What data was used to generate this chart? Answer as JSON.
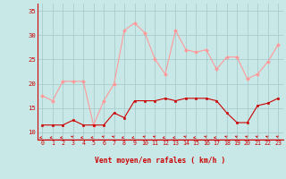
{
  "hours": [
    0,
    1,
    2,
    3,
    4,
    5,
    6,
    7,
    8,
    9,
    10,
    11,
    12,
    13,
    14,
    15,
    16,
    17,
    18,
    19,
    20,
    21,
    22,
    23
  ],
  "wind_avg": [
    11.5,
    11.5,
    11.5,
    12.5,
    11.5,
    11.5,
    11.5,
    14.0,
    13.0,
    16.5,
    16.5,
    16.5,
    17.0,
    16.5,
    17.0,
    17.0,
    17.0,
    16.5,
    14.0,
    12.0,
    12.0,
    15.5,
    16.0,
    17.0
  ],
  "wind_gust": [
    17.5,
    16.5,
    20.5,
    20.5,
    20.5,
    11.5,
    16.5,
    20.0,
    31.0,
    32.5,
    30.5,
    25.0,
    22.0,
    31.0,
    27.0,
    26.5,
    27.0,
    23.0,
    25.5,
    25.5,
    21.0,
    22.0,
    24.5,
    28.0
  ],
  "bg_color": "#c8e8e8",
  "grid_color": "#a8cccc",
  "avg_color": "#cc0000",
  "gust_color": "#ff9999",
  "xlabel": "Vent moyen/en rafales ( km/h )",
  "xlabel_color": "#cc0000",
  "tick_color": "#cc0000",
  "ylim": [
    8.5,
    36.5
  ],
  "yticks": [
    10,
    15,
    20,
    25,
    30,
    35
  ],
  "arrow_angles": [
    270,
    270,
    270,
    225,
    270,
    270,
    225,
    225,
    270,
    270,
    225,
    225,
    270,
    270,
    225,
    270,
    225,
    270,
    225,
    225,
    225,
    225,
    225,
    225
  ]
}
